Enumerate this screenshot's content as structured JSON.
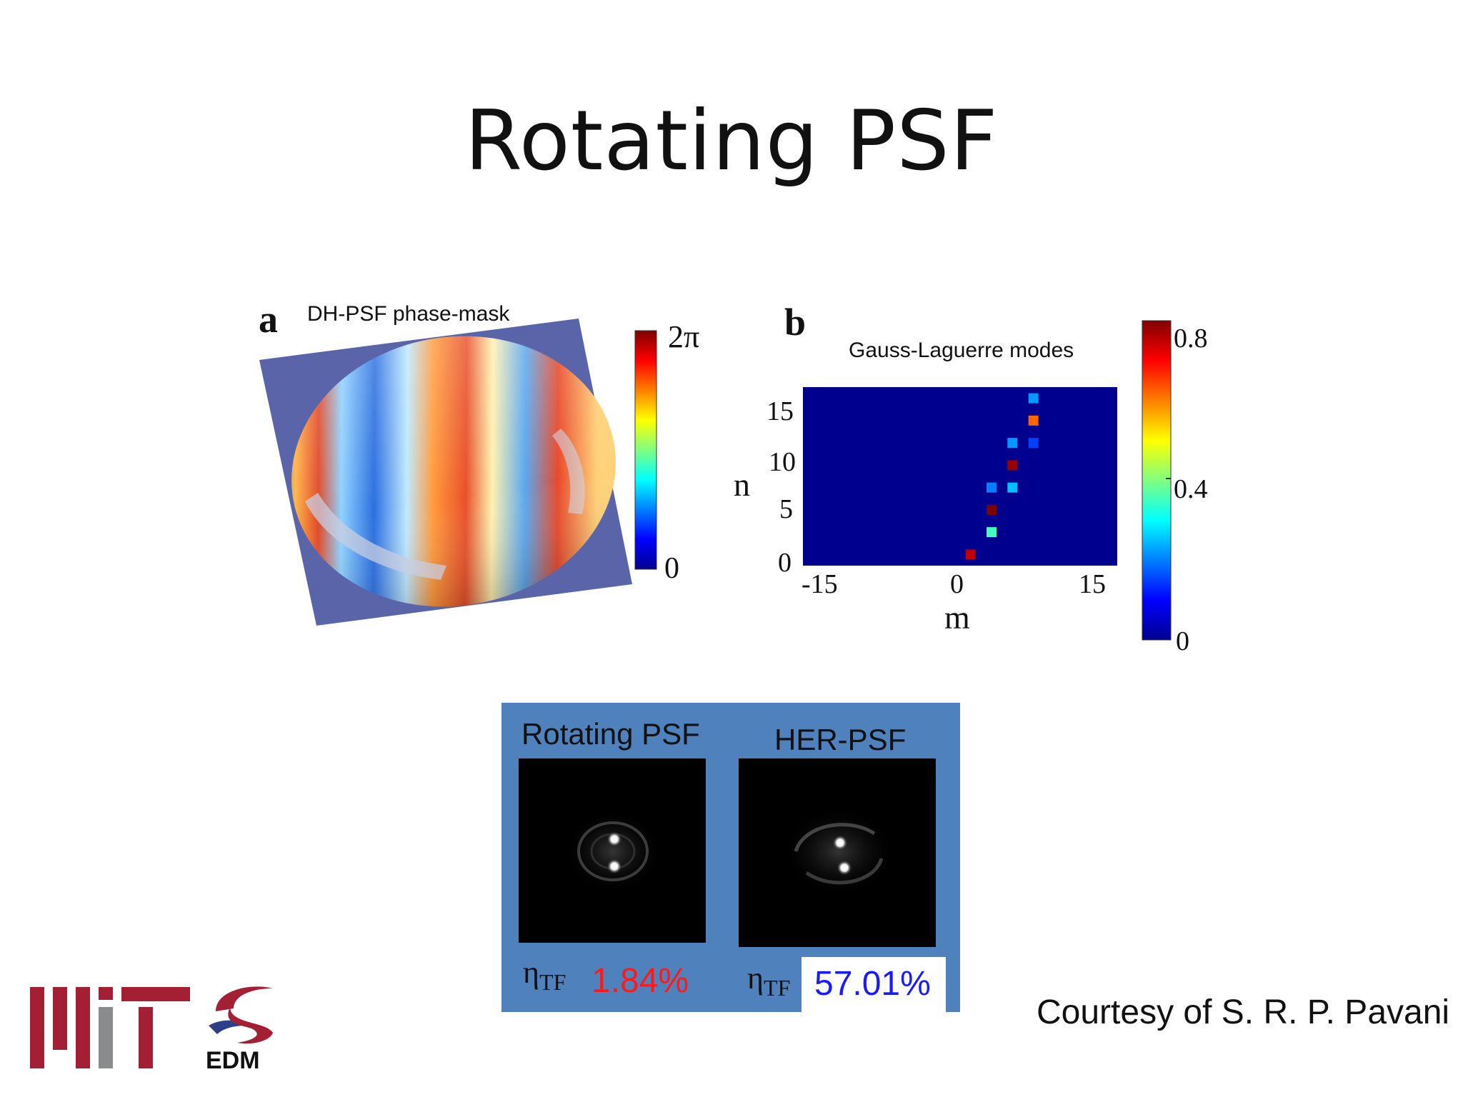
{
  "slide": {
    "title": "Rotating PSF"
  },
  "panel_a": {
    "letter": "a",
    "title": "DH-PSF phase-mask",
    "colorbar_max": "2π",
    "colorbar_min": "0"
  },
  "panel_b": {
    "letter": "b",
    "title": "Gauss-Laguerre modes",
    "ylabel": "n",
    "xlabel": "m",
    "yticks": [
      "15",
      "10",
      "5",
      "0"
    ],
    "xticks": [
      "-15",
      "0",
      "15"
    ],
    "colorbar_ticks": [
      "0.8",
      "0.4",
      "0"
    ]
  },
  "chart_data": {
    "type": "heatmap",
    "title": "Gauss-Laguerre modes",
    "xlabel": "m",
    "ylabel": "n",
    "xlim": [
      -15,
      15
    ],
    "ylim": [
      0,
      16
    ],
    "clim": [
      0,
      0.8
    ],
    "colormap": "jet",
    "background_value": 0,
    "cells": [
      {
        "m": 1,
        "n": 1,
        "value": 0.75
      },
      {
        "m": 3,
        "n": 3,
        "value": 0.35
      },
      {
        "m": 3,
        "n": 5,
        "value": 0.8
      },
      {
        "m": 3,
        "n": 7,
        "value": 0.2
      },
      {
        "m": 5,
        "n": 7,
        "value": 0.25
      },
      {
        "m": 5,
        "n": 9,
        "value": 0.78
      },
      {
        "m": 5,
        "n": 11,
        "value": 0.22
      },
      {
        "m": 7,
        "n": 11,
        "value": 0.15
      },
      {
        "m": 7,
        "n": 13,
        "value": 0.62
      },
      {
        "m": 7,
        "n": 15,
        "value": 0.22
      }
    ]
  },
  "inset": {
    "left_title": "Rotating PSF",
    "right_title": "HER-PSF",
    "eta_symbol": "η",
    "eta_subscript": "TF",
    "left_value": "1.84%",
    "right_value": "57.01%",
    "left_value_color": "#ff1a1a",
    "right_value_color": "#1a1aff",
    "background_color": "#4f81bd"
  },
  "footer": {
    "credit": "Courtesy of S. R. P. Pavani",
    "logo_mit": "MIT",
    "logo_edm": "EDM"
  }
}
